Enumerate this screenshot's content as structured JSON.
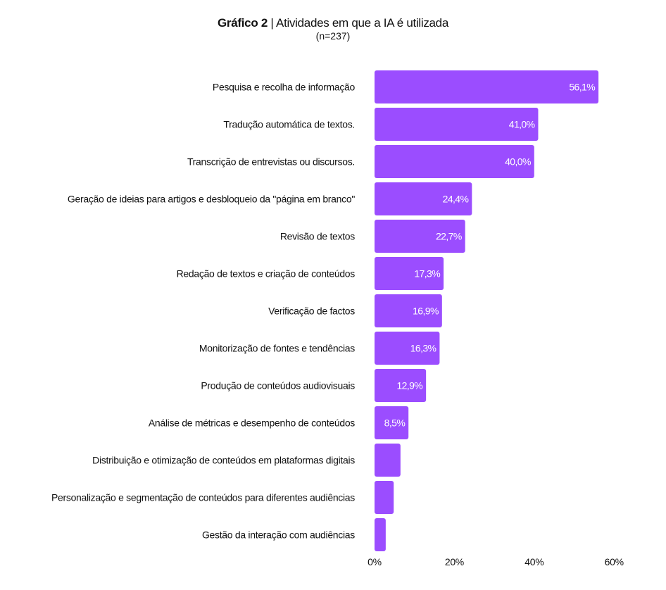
{
  "chart_data": {
    "type": "bar",
    "orientation": "horizontal",
    "title_bold": "Gráfico 2",
    "title_separator": " | ",
    "title_rest": "Atividades em que a IA é utilizada",
    "subtitle": "(n=237)",
    "xlabel": "",
    "ylabel": "",
    "xlim": [
      0,
      60
    ],
    "x_ticks": [
      "0%",
      "20%",
      "40%",
      "60%"
    ],
    "x_tick_values": [
      0,
      20,
      40,
      60
    ],
    "grid": false,
    "legend": "none",
    "bar_color": "#9B4DFF",
    "label_color": "#ffffff",
    "categories": [
      "Pesquisa e recolha de informação",
      "Tradução automática de textos.",
      "Transcrição de entrevistas ou discursos.",
      "Geração de ideias para artigos e desbloqueio da \"página em branco\"",
      "Revisão de textos",
      "Redação de textos e criação de conteúdos",
      "Verificação de factos",
      "Monitorização de fontes e tendências",
      "Produção de conteúdos audiovisuais",
      "Análise de métricas e desempenho de conteúdos",
      "Distribuição e otimização de conteúdos em plataformas digitais",
      "Personalização e segmentação de conteúdos para diferentes audiências",
      "Gestão da interação com audiências"
    ],
    "values": [
      56.1,
      41.0,
      40.0,
      24.4,
      22.7,
      17.3,
      16.9,
      16.3,
      12.9,
      8.5,
      6.5,
      4.8,
      2.8
    ],
    "data_labels": [
      "56,1%",
      "41,0%",
      "40,0%",
      "24,4%",
      "22,7%",
      "17,3%",
      "16,9%",
      "16,3%",
      "12,9%",
      "8,5%",
      "",
      "",
      ""
    ]
  }
}
